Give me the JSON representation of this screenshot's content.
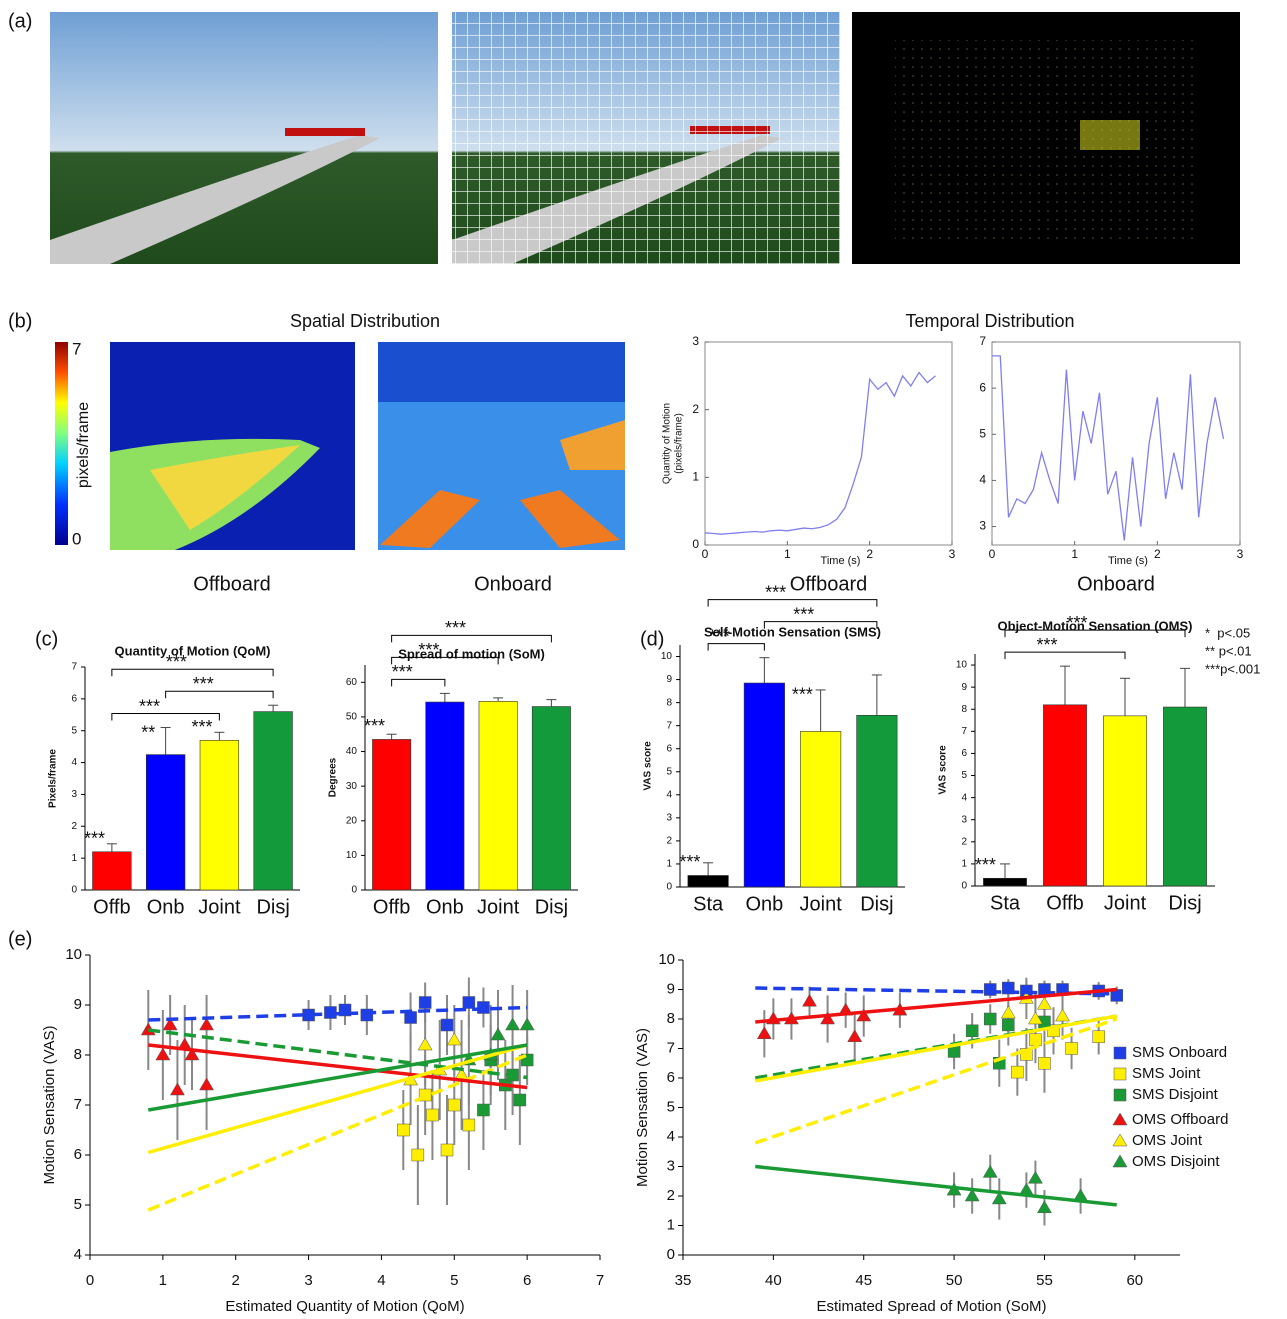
{
  "figure": {
    "panel_labels": [
      "(a)",
      "(b)",
      "(c)",
      "(d)",
      "(e)"
    ],
    "spatial_title": "Spatial Distribution",
    "temporal_title": "Temporal Distribution",
    "heatmap_labels": [
      "Offboard",
      "Onboard"
    ],
    "colorbar": {
      "range": [
        0,
        7
      ],
      "label": "pixels/frame"
    },
    "significance": [
      "*  p<.05",
      "** p<.01",
      "***p<.001"
    ]
  },
  "chart_data": [
    {
      "type": "line",
      "ylabel_lines": [
        "Quantity of Motion",
        "(pixels/frame)"
      ],
      "xlabel": "Time (s)",
      "caption": "Offboard",
      "color": "#7f7ff2",
      "x": [
        0,
        0.1,
        0.2,
        0.3,
        0.4,
        0.5,
        0.6,
        0.7,
        0.8,
        0.9,
        1.0,
        1.1,
        1.2,
        1.3,
        1.4,
        1.5,
        1.6,
        1.7,
        1.8,
        1.9,
        2.0,
        2.1,
        2.2,
        2.3,
        2.4,
        2.5,
        2.6,
        2.7,
        2.8
      ],
      "values": [
        0.18,
        0.17,
        0.16,
        0.17,
        0.18,
        0.19,
        0.2,
        0.19,
        0.21,
        0.22,
        0.21,
        0.23,
        0.25,
        0.24,
        0.26,
        0.3,
        0.38,
        0.55,
        0.9,
        1.3,
        2.45,
        2.3,
        2.4,
        2.2,
        2.5,
        2.35,
        2.55,
        2.4,
        2.5
      ],
      "xlim": [
        0,
        3
      ],
      "xticks": [
        0,
        1,
        2,
        3
      ],
      "ylim": [
        0,
        3
      ],
      "yticks": [
        0,
        1,
        2,
        3
      ]
    },
    {
      "type": "line",
      "xlabel": "Time (s)",
      "caption": "Onboard",
      "color": "#7f7ff2",
      "x": [
        0,
        0.1,
        0.2,
        0.3,
        0.4,
        0.5,
        0.6,
        0.7,
        0.8,
        0.9,
        1.0,
        1.1,
        1.2,
        1.3,
        1.4,
        1.5,
        1.6,
        1.7,
        1.8,
        1.9,
        2.0,
        2.1,
        2.2,
        2.3,
        2.4,
        2.5,
        2.6,
        2.7,
        2.8
      ],
      "values": [
        6.7,
        6.7,
        3.2,
        3.6,
        3.5,
        3.8,
        4.6,
        4.0,
        3.5,
        6.4,
        4.0,
        5.5,
        4.8,
        5.9,
        3.7,
        4.2,
        2.7,
        4.5,
        3.0,
        4.8,
        5.8,
        3.6,
        4.6,
        3.8,
        6.3,
        3.2,
        4.8,
        5.8,
        4.9
      ],
      "xlim": [
        0,
        3
      ],
      "xticks": [
        0,
        1,
        2,
        3
      ],
      "ylim": [
        2.6,
        7
      ],
      "yticks": [
        3,
        4,
        5,
        6,
        7
      ]
    },
    {
      "type": "bar",
      "title": "Quantity of Motion (QoM)",
      "ylabel": "Pixels/frame",
      "categories": [
        "Offb",
        "Onb",
        "Joint",
        "Disj"
      ],
      "values": [
        1.2,
        4.25,
        4.7,
        5.6
      ],
      "errors": [
        0.25,
        0.85,
        0.25,
        0.2
      ],
      "colors": [
        "#ff0000",
        "#0000ff",
        "#ffff00",
        "#139a3b"
      ],
      "stars": [
        "***",
        "**",
        "***",
        null
      ],
      "brackets": [
        {
          "from": "Offb",
          "to": "Joint",
          "label": "***"
        },
        {
          "from": "Onb",
          "to": "Disj",
          "label": "***"
        },
        {
          "from": "Offb",
          "to": "Disj",
          "label": "***"
        }
      ],
      "ylim": [
        0,
        7
      ],
      "yticks": [
        0,
        1,
        2,
        3,
        4,
        5,
        6,
        7
      ]
    },
    {
      "type": "bar",
      "title": "Spread of motion (SoM)",
      "ylabel": "Degrees",
      "categories": [
        "Offb",
        "Onb",
        "Joint",
        "Disj"
      ],
      "values": [
        43.5,
        54.3,
        54.5,
        53
      ],
      "errors": [
        1.5,
        2.5,
        1,
        2
      ],
      "colors": [
        "#ff0000",
        "#0000ff",
        "#ffff00",
        "#139a3b"
      ],
      "stars": [
        "***",
        null,
        null,
        null
      ],
      "brackets": [
        {
          "from": "Offb",
          "to": "Onb",
          "label": "***"
        },
        {
          "from": "Offb",
          "to": "Joint",
          "label": "***"
        },
        {
          "from": "Offb",
          "to": "Disj",
          "label": "***"
        }
      ],
      "ylim": [
        0,
        65
      ],
      "yticks": [
        0,
        10,
        20,
        30,
        40,
        50,
        60
      ]
    },
    {
      "type": "bar",
      "title": "Self-Motion Sensation (SMS)",
      "ylabel": "VAS score",
      "categories": [
        "Sta",
        "Onb",
        "Joint",
        "Disj"
      ],
      "values": [
        0.5,
        8.85,
        6.75,
        7.45
      ],
      "errors": [
        0.55,
        1.1,
        1.8,
        1.75
      ],
      "colors": [
        "#000000",
        "#0000ff",
        "#ffff00",
        "#139a3b"
      ],
      "stars": [
        "***",
        null,
        "***",
        null
      ],
      "brackets": [
        {
          "from": "Sta",
          "to": "Onb",
          "label": "***"
        },
        {
          "from": "Onb",
          "to": "Disj",
          "label": "***"
        },
        {
          "from": "Sta",
          "to": "Disj",
          "label": "***"
        }
      ],
      "ylim": [
        0,
        10.5
      ],
      "yticks": [
        0,
        1,
        2,
        3,
        4,
        5,
        6,
        7,
        8,
        9,
        10
      ]
    },
    {
      "type": "bar",
      "title": "Object-Motion Sensation (OMS)",
      "ylabel": "VAS score",
      "categories": [
        "Sta",
        "Offb",
        "Joint",
        "Disj"
      ],
      "values": [
        0.35,
        8.2,
        7.7,
        8.1
      ],
      "errors": [
        0.65,
        1.75,
        1.7,
        1.75
      ],
      "colors": [
        "#000000",
        "#ff0000",
        "#ffff00",
        "#139a3b"
      ],
      "stars": [
        "***",
        null,
        null,
        null
      ],
      "brackets": [
        {
          "from": "Sta",
          "to": "Joint",
          "label": "***"
        },
        {
          "from": "Sta",
          "to": "Disj",
          "label": "***"
        }
      ],
      "ylim": [
        0,
        10.5
      ],
      "yticks": [
        0,
        1,
        2,
        3,
        4,
        5,
        6,
        7,
        8,
        9,
        10
      ]
    },
    {
      "type": "scatter",
      "xlabel": "Estimated Quantity of Motion (QoM)",
      "ylabel": "Motion Sensation (VAS)",
      "xlim": [
        0,
        7
      ],
      "xticks": [
        0,
        1,
        2,
        3,
        4,
        5,
        6,
        7
      ],
      "ylim": [
        4,
        10
      ],
      "yticks": [
        4,
        5,
        6,
        7,
        8,
        9,
        10
      ],
      "series": [
        {
          "color": "#1f3fe6",
          "marker": "square",
          "dashed": true,
          "x": [
            3.0,
            3.3,
            3.5,
            3.8,
            4.4,
            4.6,
            4.9,
            5.2,
            5.4
          ],
          "y": [
            8.8,
            8.85,
            8.9,
            8.8,
            8.75,
            9.05,
            8.6,
            9.05,
            8.95
          ],
          "err": [
            0.3,
            0.35,
            0.3,
            0.4,
            0.5,
            0.4,
            0.6,
            0.5,
            0.4
          ],
          "trend_x": [
            0.8,
            6
          ],
          "trend_y": [
            8.7,
            8.95
          ]
        },
        {
          "color": "#ffee00",
          "marker": "square",
          "dashed": true,
          "x": [
            4.3,
            4.5,
            4.6,
            4.7,
            4.9,
            5.0,
            5.2
          ],
          "y": [
            6.5,
            6.0,
            7.2,
            6.8,
            6.1,
            7.0,
            6.6
          ],
          "err": [
            0.8,
            1,
            0.8,
            0.9,
            1.1,
            0.8,
            0.9
          ],
          "trend_x": [
            0.8,
            6
          ],
          "trend_y": [
            4.9,
            8.0
          ]
        },
        {
          "color": "#1a9a34",
          "marker": "square",
          "dashed": true,
          "x": [
            5.4,
            5.5,
            5.7,
            5.8,
            5.9,
            6.0
          ],
          "y": [
            6.9,
            7.9,
            7.4,
            7.6,
            7.1,
            7.9
          ],
          "err": [
            0.8,
            0.7,
            0.9,
            0.8,
            0.9,
            0.5
          ],
          "trend_x": [
            0.8,
            6
          ],
          "trend_y": [
            8.5,
            7.55
          ]
        },
        {
          "color": "#ee1111",
          "marker": "triangle",
          "dashed": false,
          "x": [
            0.8,
            1.0,
            1.1,
            1.2,
            1.3,
            1.4,
            1.6,
            1.6
          ],
          "y": [
            8.5,
            8.0,
            8.6,
            7.3,
            8.2,
            8.0,
            7.4,
            8.6
          ],
          "err": [
            0.8,
            0.9,
            0.6,
            1,
            0.8,
            0.7,
            0.9,
            0.6
          ],
          "trend_x": [
            0.8,
            6
          ],
          "trend_y": [
            8.2,
            7.35
          ]
        },
        {
          "color": "#ffee00",
          "marker": "triangle",
          "dashed": false,
          "x": [
            4.4,
            4.6,
            4.8,
            5.0,
            5.1
          ],
          "y": [
            7.5,
            8.2,
            7.7,
            8.3,
            7.6
          ],
          "err": [
            0.9,
            0.8,
            1,
            0.7,
            1.1
          ],
          "trend_x": [
            0.8,
            6
          ],
          "trend_y": [
            6.05,
            8.2
          ]
        },
        {
          "color": "#1a9a34",
          "marker": "triangle",
          "dashed": false,
          "x": [
            5.2,
            5.5,
            5.6,
            5.8,
            6.0
          ],
          "y": [
            7.9,
            8.0,
            8.4,
            8.6,
            8.6
          ],
          "err": [
            0.9,
            1,
            0.9,
            0.8,
            0.7
          ],
          "trend_x": [
            0.8,
            6
          ],
          "trend_y": [
            6.9,
            8.2
          ]
        }
      ]
    },
    {
      "type": "scatter",
      "xlabel": "Estimated Spread of Motion (SoM)",
      "ylabel": "Motion Sensation (VAS)",
      "xlim": [
        35,
        62.5
      ],
      "xticks": [
        35,
        40,
        45,
        50,
        55,
        60
      ],
      "ylim": [
        0,
        10
      ],
      "yticks": [
        0,
        1,
        2,
        3,
        4,
        5,
        6,
        7,
        8,
        9,
        10
      ],
      "legend": "right",
      "series": [
        {
          "name": "SMS Onboard",
          "color": "#1f3fe6",
          "marker": "square",
          "dashed": true,
          "x": [
            52,
            53,
            54,
            55,
            56,
            58,
            59
          ],
          "y": [
            9.0,
            9.05,
            8.95,
            9.0,
            9.0,
            8.95,
            8.8
          ],
          "err": [
            0.3,
            0.3,
            0.35,
            0.3,
            0.3,
            0.3,
            0.3
          ],
          "trend_x": [
            39,
            59
          ],
          "trend_y": [
            9.05,
            8.85
          ]
        },
        {
          "name": "SMS Joint",
          "color": "#ffee00",
          "marker": "square",
          "dashed": true,
          "x": [
            53.5,
            54,
            54.5,
            55,
            55.5,
            56.5,
            58
          ],
          "y": [
            6.2,
            6.8,
            7.3,
            6.5,
            7.6,
            7.0,
            7.4
          ],
          "err": [
            0.8,
            0.9,
            0.8,
            1,
            0.8,
            0.7,
            0.6
          ],
          "trend_x": [
            39,
            59
          ],
          "trend_y": [
            3.8,
            8.0
          ]
        },
        {
          "name": "SMS Disjoint",
          "color": "#1a9a34",
          "marker": "square",
          "dashed": true,
          "x": [
            50,
            51,
            52,
            52.5,
            53,
            55
          ],
          "y": [
            6.9,
            7.6,
            8.0,
            6.5,
            7.8,
            7.9
          ],
          "err": [
            0.6,
            0.6,
            0.5,
            0.8,
            0.7,
            0.6
          ],
          "trend_x": [
            39,
            59
          ],
          "trend_y": [
            6.0,
            8.1
          ]
        },
        {
          "name": "OMS Offboard",
          "color": "#ee1111",
          "marker": "triangle",
          "dashed": false,
          "x": [
            39.5,
            40,
            41,
            42,
            43,
            44,
            44.5,
            45,
            47
          ],
          "y": [
            7.5,
            8.0,
            8.0,
            8.6,
            8.0,
            8.3,
            7.4,
            8.1,
            8.3
          ],
          "err": [
            0.8,
            0.7,
            0.7,
            0.5,
            0.8,
            0.6,
            0.8,
            0.7,
            0.6
          ],
          "trend_x": [
            39,
            59
          ],
          "trend_y": [
            7.9,
            9.0
          ]
        },
        {
          "name": "OMS Joint",
          "color": "#ffee00",
          "marker": "triangle",
          "dashed": false,
          "x": [
            53,
            54,
            54.5,
            55,
            56
          ],
          "y": [
            8.2,
            8.7,
            8.0,
            8.5,
            8.1
          ],
          "err": [
            0.8,
            0.7,
            0.9,
            0.8,
            0.8
          ],
          "trend_x": [
            39,
            59
          ],
          "trend_y": [
            5.9,
            8.1
          ]
        },
        {
          "name": "OMS Disjoint",
          "color": "#1a9a34",
          "marker": "triangle",
          "dashed": false,
          "x": [
            50,
            51,
            52,
            52.5,
            54,
            54.5,
            55,
            57
          ],
          "y": [
            2.2,
            2.0,
            2.8,
            1.9,
            2.2,
            2.6,
            1.6,
            2.0
          ],
          "err": [
            0.6,
            0.6,
            0.6,
            0.7,
            0.6,
            0.6,
            0.6,
            0.6
          ],
          "trend_x": [
            39,
            59
          ],
          "trend_y": [
            3.0,
            1.7
          ]
        }
      ]
    }
  ]
}
